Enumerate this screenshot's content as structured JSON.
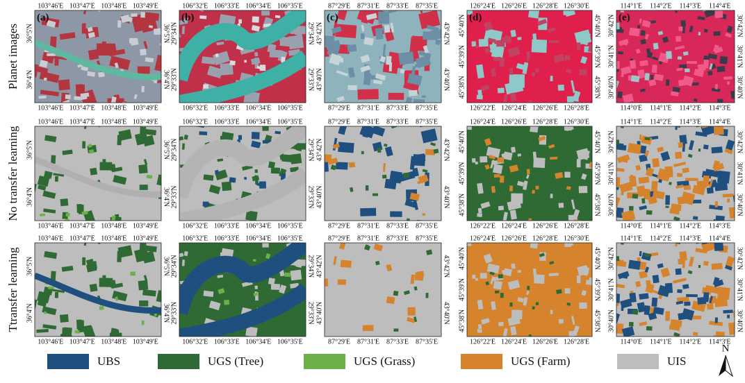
{
  "row_labels": [
    "Planet images",
    "No transfer learning",
    "Ttransfer learning"
  ],
  "panel_labels": [
    "(a)",
    "(b)",
    "(c)",
    "(d)",
    "(e)"
  ],
  "columns": [
    {
      "top": [
        "103°46'E",
        "103°47'E",
        "103°48'E",
        "103°49'E"
      ],
      "bottom": [
        "103°46'E",
        "103°47'E",
        "103°48'E",
        "103°49'E"
      ],
      "left": [
        "36°5'N",
        "36°4'N"
      ],
      "right": [
        "36°5'N",
        "36°4'N"
      ]
    },
    {
      "top": [
        "106°32'E",
        "106°33'E",
        "106°34'E",
        "106°35'E"
      ],
      "bottom": [
        "106°32'E",
        "106°33'E",
        "106°34'E",
        "106°35'E"
      ],
      "left": [
        "29°34'N",
        "29°33'N"
      ],
      "right": [
        "29°34'N",
        "29°33'N"
      ]
    },
    {
      "top": [
        "87°29'E",
        "87°31'E",
        "87°33'E",
        "87°35'E"
      ],
      "bottom": [
        "87°29'E",
        "87°31'E",
        "87°33'E",
        "87°35'E"
      ],
      "left": [
        "43°42'N",
        "43°40'N"
      ],
      "right": [
        "43°42'N",
        "43°40'N"
      ]
    },
    {
      "top": [
        "126°24'E",
        "126°26'E",
        "126°28'E",
        "126°30'E"
      ],
      "bottom": [
        "126°22'E",
        "126°24'E",
        "126°26'E",
        "126°28'E"
      ],
      "left": [
        "45°40'N",
        "45°39'N",
        "45°38'N"
      ],
      "right": [
        "45°40'N",
        "45°39'N",
        "45°38'N"
      ]
    },
    {
      "top": [
        "114°1'E",
        "114°2'E",
        "114°3'E",
        "114°4'E"
      ],
      "bottom": [
        "114°0'E",
        "114°1'E",
        "114°2'E",
        "114°3'E"
      ],
      "left": [
        "30°42'N",
        "30°41'N",
        "30°40'N"
      ],
      "right": [
        "30°42'N",
        "30°41'N",
        "30°40'N"
      ]
    }
  ],
  "legend": [
    {
      "label": "UBS",
      "color": "#1f4f7f"
    },
    {
      "label": "UGS (Tree)",
      "color": "#2f6a34"
    },
    {
      "label": "UGS (Grass)",
      "color": "#6cb04a"
    },
    {
      "label": "UGS (Farm)",
      "color": "#d5832c"
    },
    {
      "label": "UIS",
      "color": "#bdbdbd"
    }
  ],
  "north": "N"
}
